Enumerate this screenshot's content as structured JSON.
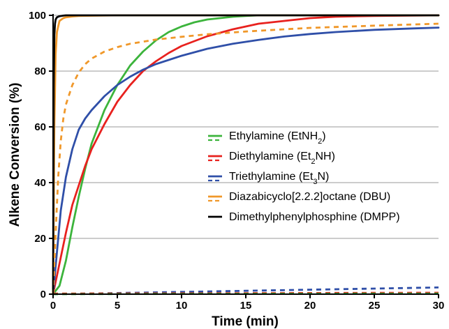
{
  "chart_data": {
    "type": "line",
    "title": "",
    "xlabel": "Time (min)",
    "ylabel": "Alkene Conversion (%)",
    "xlim": [
      0,
      30
    ],
    "ylim": [
      0,
      100
    ],
    "xticks": [
      0,
      5,
      10,
      15,
      20,
      25,
      30
    ],
    "yticks": [
      0,
      20,
      40,
      60,
      80,
      100
    ],
    "grid": "horizontal",
    "legend_position": "center-right",
    "series": [
      {
        "name": "Ethylamine (EtNH2)",
        "label_parts": [
          {
            "t": "Ethylamine (EtNH"
          },
          {
            "t": "2",
            "sub": true
          },
          {
            "t": ")"
          }
        ],
        "color": "#3cb43c",
        "style": "solid",
        "x": [
          0,
          0.5,
          1,
          1.5,
          2,
          2.5,
          3,
          4,
          5,
          6,
          7,
          8,
          9,
          10,
          11,
          12,
          13,
          14,
          15,
          16,
          18,
          20,
          25,
          30
        ],
        "y": [
          0,
          3,
          12,
          24,
          35,
          45,
          54,
          66,
          75,
          82,
          87,
          91,
          94,
          96,
          97.5,
          98.5,
          99,
          99.5,
          99.8,
          100,
          100,
          100,
          100,
          100
        ]
      },
      {
        "name": "Diethylamine (Et2NH)",
        "label_parts": [
          {
            "t": "Diethylamine (Et"
          },
          {
            "t": "2",
            "sub": true
          },
          {
            "t": "NH)"
          }
        ],
        "color": "#e8211e",
        "style": "solid",
        "x": [
          0,
          0.5,
          1,
          1.5,
          2,
          2.5,
          3,
          4,
          5,
          6,
          7,
          8,
          9,
          10,
          12,
          14,
          16,
          18,
          20,
          22,
          25,
          30
        ],
        "y": [
          0,
          11,
          22,
          32,
          39,
          46,
          52,
          61,
          69,
          75,
          80,
          83.5,
          86.5,
          89,
          92.5,
          95,
          97,
          98,
          99,
          99.5,
          99.8,
          100
        ]
      },
      {
        "name": "Triethylamine (Et3N)",
        "label_parts": [
          {
            "t": "Triethylamine (Et"
          },
          {
            "t": "3",
            "sub": true
          },
          {
            "t": "N)"
          }
        ],
        "color": "#2f4fa8",
        "style": "solid",
        "x": [
          0,
          0.3,
          0.6,
          1,
          1.5,
          2,
          2.5,
          3,
          4,
          5,
          6,
          7,
          8,
          10,
          12,
          14,
          16,
          18,
          20,
          22,
          25,
          28,
          30
        ],
        "y": [
          0,
          15,
          30,
          42,
          52,
          59,
          63,
          66,
          71,
          75,
          78,
          80.5,
          82.5,
          85.5,
          88,
          89.8,
          91.2,
          92.4,
          93.3,
          94,
          94.8,
          95.3,
          95.6
        ]
      },
      {
        "name": "Diazabicyclo[2.2.2]octane (DBU)",
        "label_parts": [
          {
            "t": "Diazabicyclo[2.2.2]octane (DBU)"
          }
        ],
        "color": "#f0982a",
        "style": "solid",
        "x": [
          0,
          0.1,
          0.2,
          0.3,
          0.5,
          0.8,
          1,
          1.5,
          2,
          5,
          10,
          20,
          30
        ],
        "y": [
          0,
          60,
          86,
          94,
          98,
          99,
          99.3,
          99.6,
          99.8,
          100,
          100,
          100,
          100
        ]
      },
      {
        "name": "Dimethylphenylphosphine (DMPP)",
        "label_parts": [
          {
            "t": "Dimethylphenylphosphine (DMPP)"
          }
        ],
        "color": "#000000",
        "style": "solid",
        "x": [
          0,
          0.05,
          0.1,
          0.15,
          0.2,
          0.3,
          0.5,
          0.8,
          1,
          2,
          5,
          10,
          20,
          30
        ],
        "y": [
          0,
          75,
          93,
          97,
          98.5,
          99.3,
          99.7,
          99.9,
          100,
          100,
          100,
          100,
          100,
          100
        ]
      },
      {
        "name": "",
        "color": "#f0982a",
        "style": "dashed",
        "x": [
          0,
          0.2,
          0.4,
          0.6,
          0.8,
          1,
          1.5,
          2,
          2.5,
          3,
          4,
          5,
          6,
          8,
          10,
          12,
          15,
          18,
          20,
          25,
          30
        ],
        "y": [
          0,
          22,
          42,
          55,
          63,
          68,
          75,
          79.5,
          82.5,
          84.5,
          87,
          88.6,
          89.8,
          91.3,
          92.3,
          93.2,
          94.2,
          95,
          95.5,
          96.3,
          97
        ]
      },
      {
        "name": "",
        "color": "#2f4fa8",
        "style": "dashed",
        "x": [
          0,
          5,
          10,
          15,
          20,
          25,
          30
        ],
        "y": [
          0,
          0.4,
          0.8,
          1.2,
          1.6,
          2.0,
          2.4
        ]
      },
      {
        "name": "",
        "color": "#e8211e",
        "style": "dashed",
        "x": [
          0,
          10,
          20,
          30
        ],
        "y": [
          0.2,
          0.3,
          0.4,
          0.5
        ]
      },
      {
        "name": "",
        "color": "#3cb43c",
        "style": "dashed",
        "x": [
          0,
          10,
          20,
          30
        ],
        "y": [
          0,
          0.1,
          0.15,
          0.2
        ]
      }
    ],
    "legend": [
      {
        "label_parts": [
          {
            "t": "Ethylamine (EtNH"
          },
          {
            "t": "2",
            "sub": true
          },
          {
            "t": ")"
          }
        ],
        "color": "#3cb43c"
      },
      {
        "label_parts": [
          {
            "t": "Diethylamine (Et"
          },
          {
            "t": "2",
            "sub": true
          },
          {
            "t": "NH)"
          }
        ],
        "color": "#e8211e"
      },
      {
        "label_parts": [
          {
            "t": "Triethylamine (Et"
          },
          {
            "t": "3",
            "sub": true
          },
          {
            "t": "N)"
          }
        ],
        "color": "#2f4fa8"
      },
      {
        "label_parts": [
          {
            "t": "Diazabicyclo[2.2.2]octane (DBU)"
          }
        ],
        "color": "#f0982a"
      },
      {
        "label_parts": [
          {
            "t": "Dimethylphenylphosphine (DMPP)"
          }
        ],
        "color": "#000000"
      }
    ]
  }
}
